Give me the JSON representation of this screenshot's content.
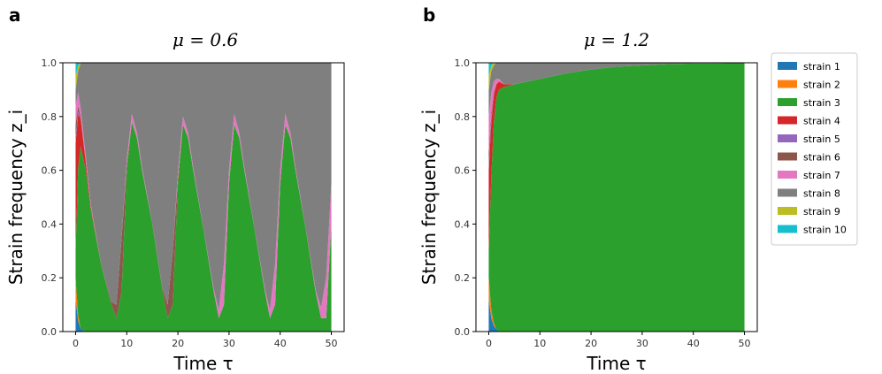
{
  "legend": {
    "entries": [
      {
        "label": "strain 1",
        "color": "#1f77b4"
      },
      {
        "label": "strain 2",
        "color": "#ff7f0e"
      },
      {
        "label": "strain 3",
        "color": "#2ca02c"
      },
      {
        "label": "strain 4",
        "color": "#d62728"
      },
      {
        "label": "strain 5",
        "color": "#9467bd"
      },
      {
        "label": "strain 6",
        "color": "#8c564b"
      },
      {
        "label": "strain 7",
        "color": "#e377c2"
      },
      {
        "label": "strain 8",
        "color": "#7f7f7f"
      },
      {
        "label": "strain 9",
        "color": "#bcbd22"
      },
      {
        "label": "strain 10",
        "color": "#17becf"
      }
    ],
    "placement": "right"
  },
  "chart_data": [
    {
      "type": "area",
      "stacked": true,
      "panel_letter": "a",
      "title": "μ = 0.6",
      "xlabel": "Time τ",
      "ylabel": "Strain frequency z_i",
      "xlim": [
        0,
        50
      ],
      "ylim": [
        0,
        1
      ],
      "xticks": [
        "0",
        "10",
        "20",
        "30",
        "40",
        "50"
      ],
      "yticks": [
        "0.0",
        "0.2",
        "0.4",
        "0.6",
        "0.8",
        "1.0"
      ],
      "grid": false,
      "description_of_dynamics": "oscillating dominance between strain 3 and strain 8 with period ~10",
      "x": [
        0,
        0.5,
        1,
        2,
        3,
        5,
        7,
        8,
        9,
        10,
        11,
        12,
        13,
        15,
        17,
        18,
        19,
        20,
        21,
        22,
        23,
        25,
        27,
        28,
        29,
        30,
        31,
        32,
        33,
        35,
        37,
        38,
        39,
        40,
        41,
        42,
        43,
        45,
        47,
        48,
        49,
        50
      ],
      "series": [
        {
          "name": "strain 1",
          "values": [
            0.12,
            0.04,
            0.01,
            0,
            0,
            0,
            0,
            0,
            0,
            0,
            0,
            0,
            0,
            0,
            0,
            0,
            0,
            0,
            0,
            0,
            0,
            0,
            0,
            0,
            0,
            0,
            0,
            0,
            0,
            0,
            0,
            0,
            0,
            0,
            0,
            0,
            0,
            0,
            0,
            0,
            0,
            0
          ]
        },
        {
          "name": "strain 2",
          "values": [
            0.08,
            0.02,
            0,
            0,
            0,
            0,
            0,
            0,
            0,
            0,
            0,
            0,
            0,
            0,
            0,
            0,
            0,
            0,
            0,
            0,
            0,
            0,
            0,
            0,
            0,
            0,
            0,
            0,
            0,
            0,
            0,
            0,
            0,
            0,
            0,
            0,
            0,
            0,
            0,
            0,
            0,
            0
          ]
        },
        {
          "name": "strain 3",
          "values": [
            0.1,
            0.55,
            0.68,
            0.6,
            0.45,
            0.25,
            0.1,
            0.05,
            0.15,
            0.6,
            0.78,
            0.72,
            0.6,
            0.4,
            0.15,
            0.05,
            0.1,
            0.55,
            0.77,
            0.72,
            0.6,
            0.38,
            0.15,
            0.05,
            0.1,
            0.55,
            0.77,
            0.72,
            0.6,
            0.38,
            0.15,
            0.05,
            0.1,
            0.55,
            0.77,
            0.72,
            0.6,
            0.38,
            0.14,
            0.05,
            0.05,
            0.4
          ]
        },
        {
          "name": "strain 4",
          "values": [
            0.4,
            0.2,
            0.1,
            0.03,
            0.01,
            0,
            0,
            0,
            0,
            0,
            0,
            0,
            0,
            0,
            0,
            0,
            0,
            0,
            0,
            0,
            0,
            0,
            0,
            0,
            0,
            0,
            0,
            0,
            0,
            0,
            0,
            0,
            0,
            0,
            0,
            0,
            0,
            0,
            0,
            0,
            0,
            0
          ]
        },
        {
          "name": "strain 5",
          "values": [
            0.02,
            0.01,
            0,
            0,
            0,
            0,
            0,
            0,
            0,
            0,
            0,
            0,
            0,
            0,
            0,
            0,
            0,
            0,
            0,
            0,
            0,
            0,
            0,
            0,
            0,
            0,
            0,
            0,
            0,
            0,
            0,
            0,
            0,
            0,
            0,
            0,
            0,
            0,
            0,
            0,
            0,
            0
          ]
        },
        {
          "name": "strain 6",
          "values": [
            0.05,
            0.02,
            0.01,
            0,
            0,
            0,
            0.01,
            0.05,
            0.2,
            0.02,
            0,
            0,
            0,
            0,
            0.01,
            0.05,
            0.2,
            0.02,
            0,
            0,
            0,
            0,
            0,
            0,
            0,
            0,
            0,
            0,
            0,
            0,
            0,
            0,
            0,
            0,
            0,
            0,
            0,
            0,
            0,
            0,
            0,
            0
          ]
        },
        {
          "name": "strain 7",
          "values": [
            0.07,
            0.05,
            0.03,
            0.02,
            0.01,
            0,
            0,
            0,
            0,
            0.02,
            0.03,
            0.02,
            0.01,
            0,
            0,
            0,
            0,
            0.02,
            0.03,
            0.02,
            0.01,
            0,
            0.01,
            0.03,
            0.15,
            0.05,
            0.04,
            0.02,
            0.01,
            0,
            0.01,
            0.03,
            0.15,
            0.05,
            0.04,
            0.02,
            0.01,
            0,
            0.01,
            0.04,
            0.15,
            0.15
          ]
        },
        {
          "name": "strain 8",
          "values": [
            0.06,
            0.08,
            0.17,
            0.35,
            0.53,
            0.75,
            0.89,
            0.9,
            0.65,
            0.36,
            0.19,
            0.26,
            0.39,
            0.6,
            0.84,
            0.9,
            0.7,
            0.41,
            0.2,
            0.26,
            0.39,
            0.62,
            0.84,
            0.92,
            0.75,
            0.4,
            0.19,
            0.26,
            0.39,
            0.62,
            0.84,
            0.92,
            0.75,
            0.4,
            0.19,
            0.26,
            0.39,
            0.62,
            0.85,
            0.91,
            0.8,
            0.45
          ]
        },
        {
          "name": "strain 9",
          "values": [
            0.05,
            0.02,
            0,
            0,
            0,
            0,
            0,
            0,
            0,
            0,
            0,
            0,
            0,
            0,
            0,
            0,
            0,
            0,
            0,
            0,
            0,
            0,
            0,
            0,
            0,
            0,
            0,
            0,
            0,
            0,
            0,
            0,
            0,
            0,
            0,
            0,
            0,
            0,
            0,
            0,
            0,
            0
          ]
        },
        {
          "name": "strain 10",
          "values": [
            0.05,
            0.01,
            0,
            0,
            0,
            0,
            0,
            0,
            0,
            0,
            0,
            0,
            0,
            0,
            0,
            0,
            0,
            0,
            0,
            0,
            0,
            0,
            0,
            0,
            0,
            0,
            0,
            0,
            0,
            0,
            0,
            0,
            0,
            0,
            0,
            0,
            0,
            0,
            0,
            0,
            0,
            0
          ]
        }
      ]
    },
    {
      "type": "area",
      "stacked": true,
      "panel_letter": "b",
      "title": "μ = 1.2",
      "xlabel": "Time τ",
      "ylabel": "Strain frequency z_i",
      "xlim": [
        0,
        50
      ],
      "ylim": [
        0,
        1
      ],
      "xticks": [
        "0",
        "10",
        "20",
        "30",
        "40",
        "50"
      ],
      "yticks": [
        "0.0",
        "0.2",
        "0.4",
        "0.6",
        "0.8",
        "1.0"
      ],
      "grid": false,
      "x": [
        0,
        0.5,
        1,
        1.5,
        2,
        3,
        5,
        10,
        15,
        20,
        25,
        30,
        35,
        40,
        45,
        50
      ],
      "series": [
        {
          "name": "strain 1",
          "values": [
            0.12,
            0.05,
            0.02,
            0.01,
            0,
            0,
            0,
            0,
            0,
            0,
            0,
            0,
            0,
            0,
            0,
            0
          ]
        },
        {
          "name": "strain 2",
          "values": [
            0.08,
            0.03,
            0.01,
            0,
            0,
            0,
            0,
            0,
            0,
            0,
            0,
            0,
            0,
            0,
            0,
            0
          ]
        },
        {
          "name": "strain 3",
          "values": [
            0.1,
            0.5,
            0.75,
            0.86,
            0.9,
            0.91,
            0.92,
            0.94,
            0.96,
            0.975,
            0.985,
            0.99,
            0.995,
            0.997,
            0.998,
            0.999
          ]
        },
        {
          "name": "strain 4",
          "values": [
            0.3,
            0.2,
            0.1,
            0.05,
            0.03,
            0.01,
            0,
            0,
            0,
            0,
            0,
            0,
            0,
            0,
            0,
            0
          ]
        },
        {
          "name": "strain 5",
          "values": [
            0.02,
            0.01,
            0,
            0,
            0,
            0,
            0,
            0,
            0,
            0,
            0,
            0,
            0,
            0,
            0,
            0
          ]
        },
        {
          "name": "strain 6",
          "values": [
            0.05,
            0.02,
            0.01,
            0,
            0,
            0,
            0,
            0,
            0,
            0,
            0,
            0,
            0,
            0,
            0,
            0
          ]
        },
        {
          "name": "strain 7",
          "values": [
            0.13,
            0.08,
            0.04,
            0.02,
            0.01,
            0,
            0,
            0,
            0,
            0,
            0,
            0,
            0,
            0,
            0,
            0
          ]
        },
        {
          "name": "strain 8",
          "values": [
            0.1,
            0.08,
            0.06,
            0.06,
            0.06,
            0.08,
            0.08,
            0.06,
            0.04,
            0.025,
            0.015,
            0.01,
            0.005,
            0.003,
            0.002,
            0.001
          ]
        },
        {
          "name": "strain 9",
          "values": [
            0.05,
            0.02,
            0.01,
            0,
            0,
            0,
            0,
            0,
            0,
            0,
            0,
            0,
            0,
            0,
            0,
            0
          ]
        },
        {
          "name": "strain 10",
          "values": [
            0.05,
            0.01,
            0,
            0,
            0,
            0,
            0,
            0,
            0,
            0,
            0,
            0,
            0,
            0,
            0,
            0
          ]
        }
      ]
    }
  ]
}
